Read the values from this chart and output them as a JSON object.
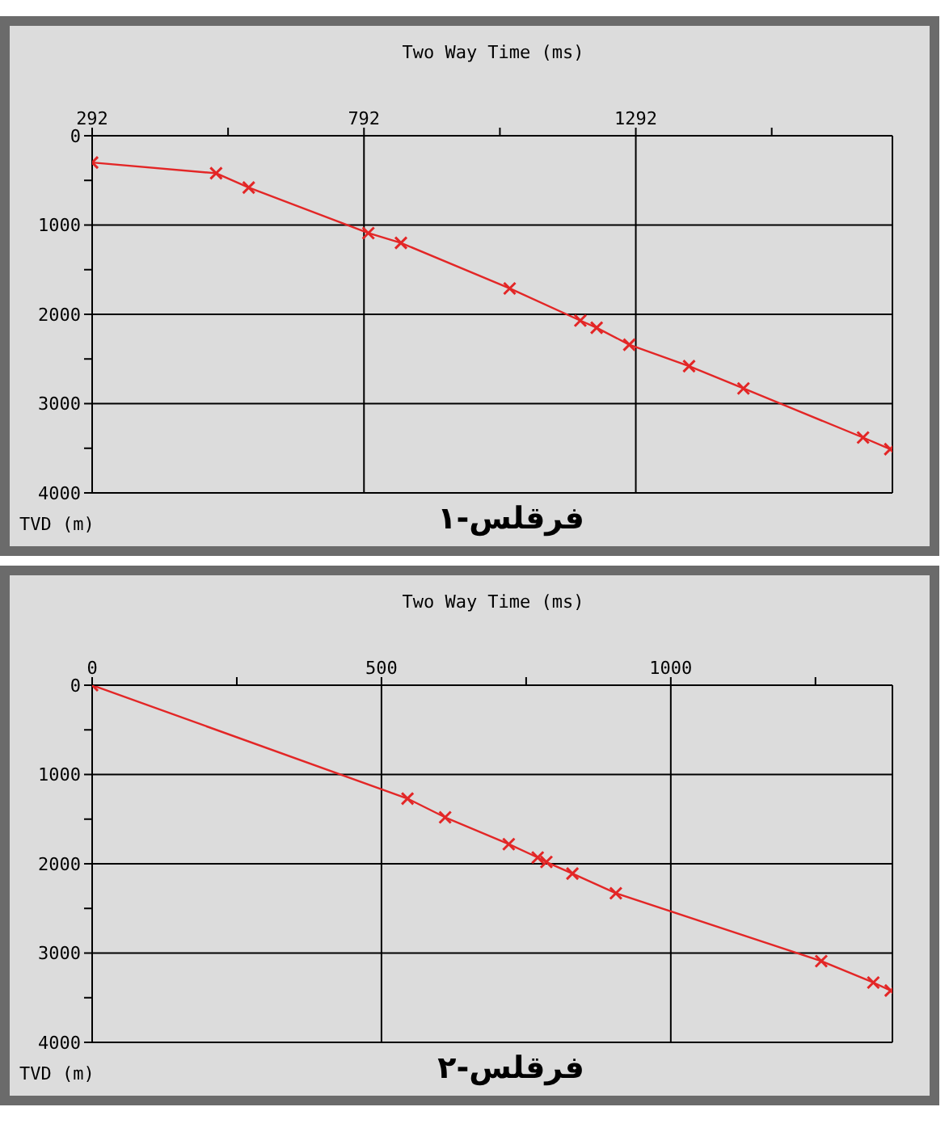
{
  "chart_data": [
    {
      "type": "line",
      "title": "فرقلس-۱",
      "xlabel": "Two Way Time (ms)",
      "ylabel": "TVD (m)",
      "marker": "cross",
      "grid": true,
      "x": [
        292,
        520,
        580,
        800,
        860,
        1060,
        1190,
        1220,
        1280,
        1390,
        1490,
        1710,
        1760
      ],
      "series": [
        {
          "color": "#e32626",
          "values": [
            300,
            420,
            580,
            1090,
            1200,
            1710,
            2070,
            2150,
            2340,
            2580,
            2830,
            3380,
            3510
          ]
        }
      ],
      "xlim": [
        292,
        1764
      ],
      "xticks": [
        292,
        {
          "value": 542,
          "label": null
        },
        792,
        {
          "value": 1042,
          "label": null
        },
        1292,
        {
          "value": 1542,
          "label": null
        }
      ],
      "ylim": [
        4000,
        0
      ],
      "yticks": [
        0,
        {
          "value": 500,
          "label": null
        },
        1000,
        {
          "value": 1500,
          "label": null
        },
        2000,
        {
          "value": 2500,
          "label": null
        },
        3000,
        {
          "value": 3500,
          "label": null
        },
        4000
      ]
    },
    {
      "type": "line",
      "title": "فرقلس-۲",
      "xlabel": "Two Way Time (ms)",
      "ylabel": "TVD (m)",
      "marker": "cross",
      "grid": true,
      "x": [
        0,
        545,
        610,
        720,
        770,
        785,
        830,
        905,
        1260,
        1350,
        1380
      ],
      "series": [
        {
          "color": "#e32626",
          "values": [
            0,
            1270,
            1480,
            1780,
            1930,
            1980,
            2110,
            2330,
            3090,
            3330,
            3420
          ]
        }
      ],
      "xlim": [
        0,
        1383
      ],
      "xticks": [
        0,
        {
          "value": 250,
          "label": null
        },
        500,
        {
          "value": 750,
          "label": null
        },
        1000,
        {
          "value": 1250,
          "label": null
        }
      ],
      "ylim": [
        4000,
        0
      ],
      "yticks": [
        0,
        {
          "value": 500,
          "label": null
        },
        1000,
        {
          "value": 1500,
          "label": null
        },
        2000,
        {
          "value": 2500,
          "label": null
        },
        3000,
        {
          "value": 3500,
          "label": null
        },
        4000
      ]
    }
  ]
}
